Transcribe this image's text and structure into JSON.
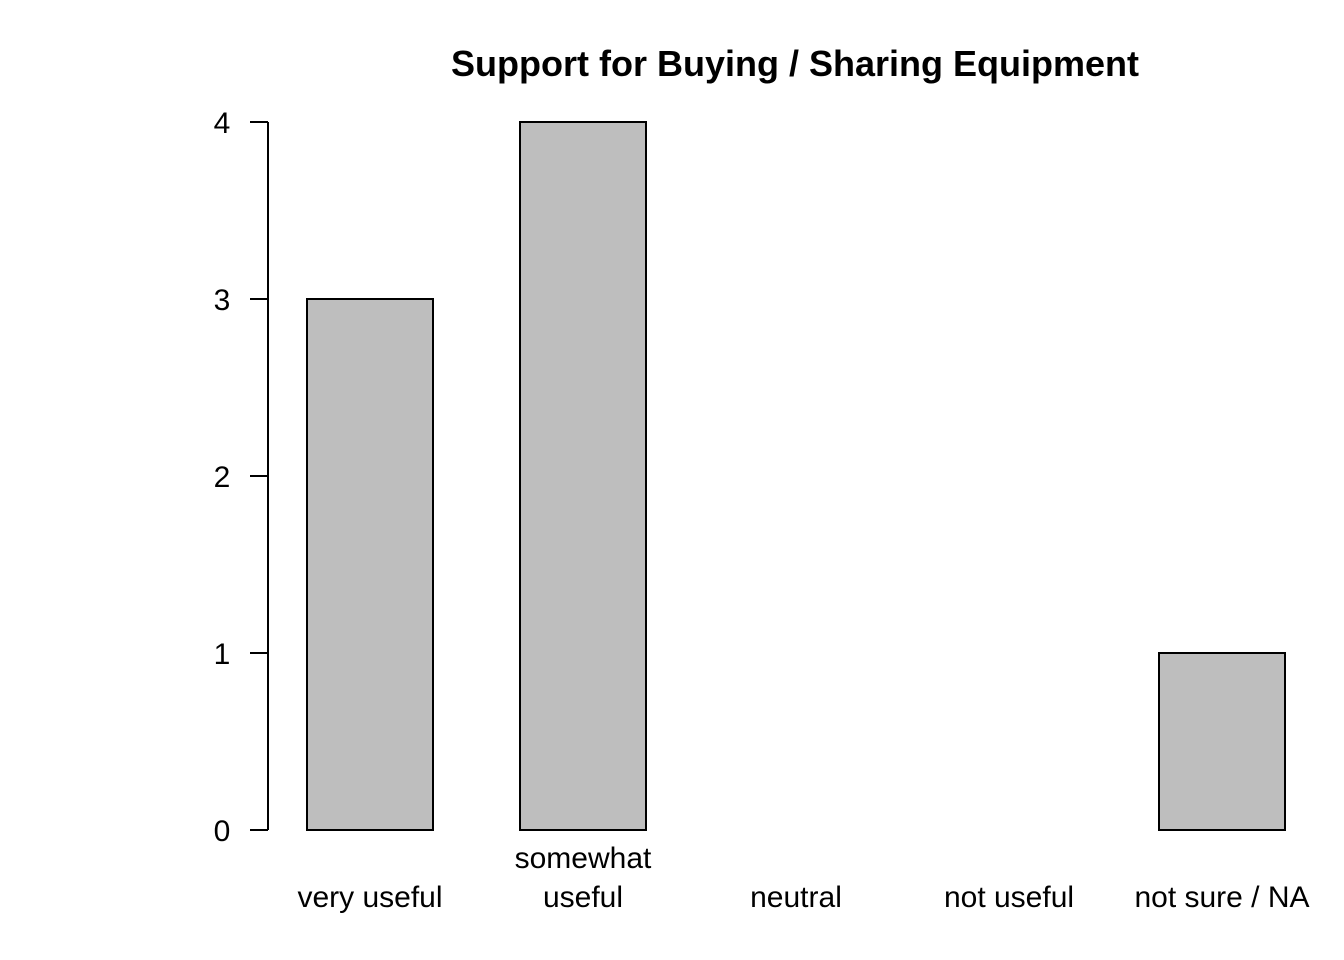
{
  "chart_data": {
    "type": "bar",
    "title": "Support for Buying / Sharing Equipment",
    "categories": [
      [
        "very useful"
      ],
      [
        "somewhat",
        "useful"
      ],
      [
        "neutral"
      ],
      [
        "not useful"
      ],
      [
        "not sure / NA"
      ]
    ],
    "values": [
      3,
      4,
      0,
      0,
      1
    ],
    "ylim": [
      0,
      4
    ],
    "yticks": [
      0,
      1,
      2,
      3,
      4
    ],
    "xlabel": "",
    "ylabel": "",
    "grid": false,
    "bar_color": "#bebebe",
    "edge_color": "#000000"
  }
}
